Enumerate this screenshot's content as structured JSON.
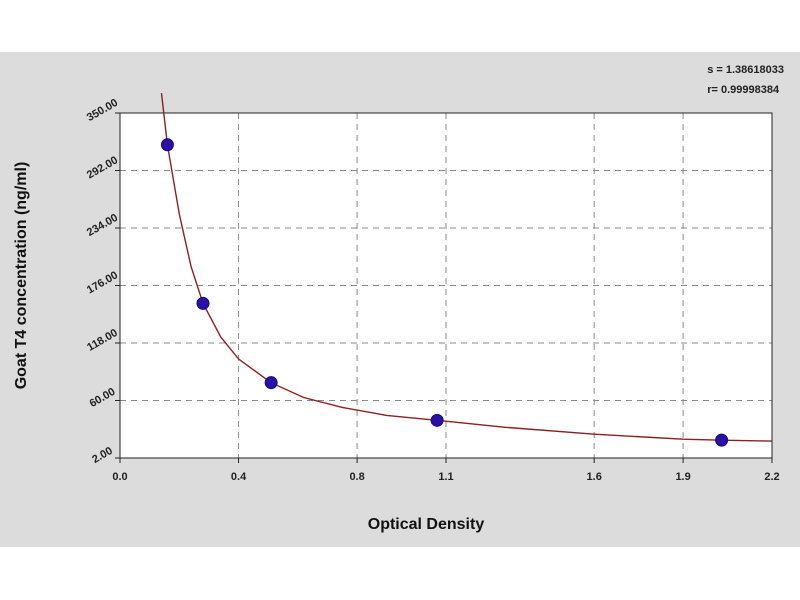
{
  "stats": {
    "s_line": "s = 1.38618033",
    "r_line": "r= 0.99998384"
  },
  "colors": {
    "panel": "#dcdcdc",
    "plot_bg": "#ffffff",
    "curve": "#8b2020",
    "point": "#2a0fa8",
    "grid": "#8a8a8a"
  },
  "chart_data": {
    "type": "scatter",
    "xlabel": "Optical Density",
    "ylabel": "Goat T4 concentration (ng/ml)",
    "xlim": [
      0.0,
      2.2
    ],
    "ylim": [
      2.0,
      350.0
    ],
    "x_ticks": [
      0.0,
      0.4,
      0.8,
      1.1,
      1.6,
      1.9,
      2.2
    ],
    "x_tick_labels": [
      "0.0",
      "0.4",
      "0.8",
      "1.1",
      "1.6",
      "1.9",
      "2.2"
    ],
    "y_ticks": [
      2,
      60,
      118,
      176,
      234,
      292,
      350
    ],
    "y_tick_labels": [
      "2.00",
      "60.00",
      "118.00",
      "176.00",
      "234.00",
      "292.00",
      "350.00"
    ],
    "grid": true,
    "points": [
      {
        "x": 0.16,
        "y": 318
      },
      {
        "x": 0.28,
        "y": 158
      },
      {
        "x": 0.51,
        "y": 78
      },
      {
        "x": 1.07,
        "y": 40
      },
      {
        "x": 2.03,
        "y": 20
      }
    ],
    "curve": [
      {
        "x": 0.14,
        "y": 370
      },
      {
        "x": 0.16,
        "y": 318
      },
      {
        "x": 0.2,
        "y": 248
      },
      {
        "x": 0.24,
        "y": 195
      },
      {
        "x": 0.28,
        "y": 158
      },
      {
        "x": 0.34,
        "y": 124
      },
      {
        "x": 0.4,
        "y": 102
      },
      {
        "x": 0.51,
        "y": 78
      },
      {
        "x": 0.62,
        "y": 63
      },
      {
        "x": 0.75,
        "y": 53
      },
      {
        "x": 0.9,
        "y": 45
      },
      {
        "x": 1.07,
        "y": 40
      },
      {
        "x": 1.3,
        "y": 33
      },
      {
        "x": 1.6,
        "y": 26
      },
      {
        "x": 1.9,
        "y": 21
      },
      {
        "x": 2.03,
        "y": 20
      },
      {
        "x": 2.2,
        "y": 19
      }
    ]
  }
}
